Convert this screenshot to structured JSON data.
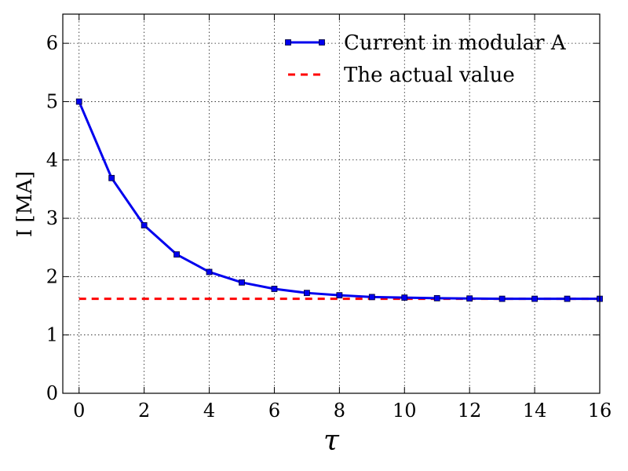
{
  "chart_data": {
    "type": "line",
    "xlabel": "τ",
    "ylabel": "I [MA]",
    "xlim": [
      -0.5,
      16
    ],
    "ylim": [
      0,
      6.5
    ],
    "xticks": [
      0,
      2,
      4,
      6,
      8,
      10,
      12,
      14,
      16
    ],
    "yticks": [
      0,
      1,
      2,
      3,
      4,
      5,
      6
    ],
    "xtick_labels": [
      "0",
      "2",
      "4",
      "6",
      "8",
      "10",
      "12",
      "14",
      "16"
    ],
    "ytick_labels": [
      "0",
      "1",
      "2",
      "3",
      "4",
      "5",
      "6"
    ],
    "grid": true,
    "legend_position": "top-right",
    "series": [
      {
        "name": "Current in modular A",
        "color": "#0000ee",
        "style": "solid",
        "marker": "square",
        "x": [
          0,
          1,
          2,
          3,
          4,
          5,
          6,
          7,
          8,
          9,
          10,
          11,
          12,
          13,
          14,
          15,
          16
        ],
        "y": [
          5.0,
          3.69,
          2.88,
          2.38,
          2.08,
          1.9,
          1.79,
          1.72,
          1.68,
          1.65,
          1.64,
          1.63,
          1.625,
          1.62,
          1.62,
          1.62,
          1.62
        ]
      },
      {
        "name": "The actual value",
        "color": "#ff0000",
        "style": "dashed",
        "marker": "none",
        "x": [
          0,
          16
        ],
        "y": [
          1.62,
          1.62
        ]
      }
    ]
  }
}
